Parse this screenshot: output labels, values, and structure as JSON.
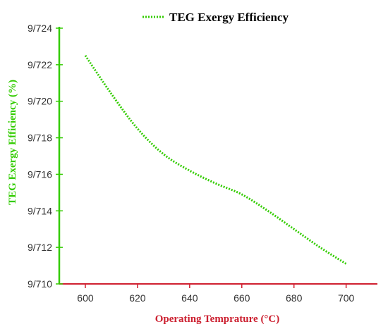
{
  "chart_data": {
    "type": "line",
    "title": "",
    "xlabel": "Operating Temprature (°C)",
    "ylabel": "TEG Exergy Efficiency (%)",
    "xlim": [
      590,
      712
    ],
    "ylim": [
      9.71,
      9.724
    ],
    "x_ticks": [
      600,
      620,
      640,
      660,
      680,
      700
    ],
    "x_tick_labels": [
      "600",
      "620",
      "640",
      "660",
      "680",
      "700"
    ],
    "y_ticks": [
      9.71,
      9.712,
      9.714,
      9.716,
      9.718,
      9.72,
      9.722,
      9.724
    ],
    "y_tick_labels": [
      "9/710",
      "9/712",
      "9/714",
      "9/716",
      "9/718",
      "9/720",
      "9/722",
      "9/724"
    ],
    "grid": false,
    "legend_position": "top-center",
    "series": [
      {
        "name": "TEG Exergy Efficiency",
        "line_style": "dotted",
        "color": "#33cc00",
        "x": [
          600,
          610,
          620,
          630,
          640,
          650,
          660,
          670,
          680,
          690,
          700
        ],
        "values": [
          9.7225,
          9.7204,
          9.7185,
          9.7171,
          9.7162,
          9.7155,
          9.7149,
          9.714,
          9.713,
          9.712,
          9.7111
        ]
      }
    ],
    "colors": {
      "y_axis": "#33cc00",
      "y_title": "#33cc00",
      "x_axis": "#d02030",
      "x_title": "#cc2030",
      "tick_label": "#333333"
    }
  }
}
